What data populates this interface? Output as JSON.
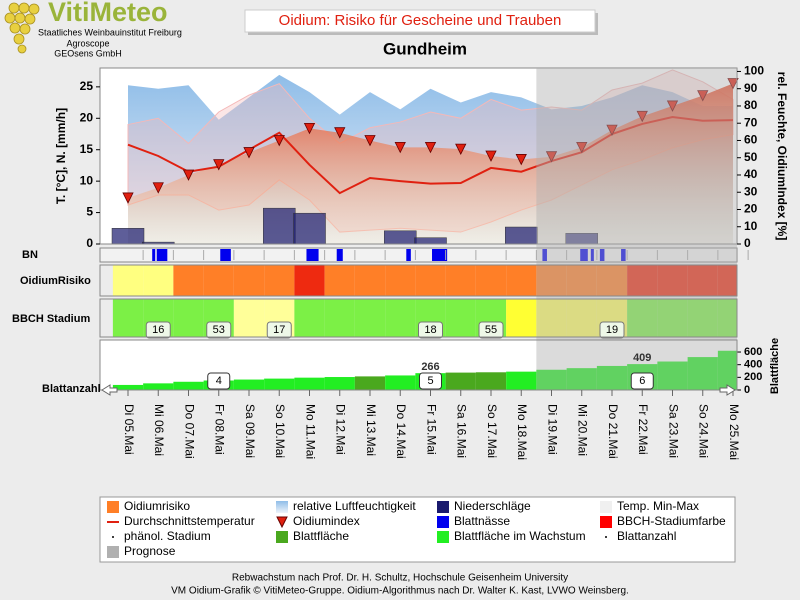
{
  "logo": {
    "name": "VitiMeteo",
    "lines": [
      "Staatliches Weinbauinstitut Freiburg",
      "Agroscope",
      "GEOsens GmbH"
    ]
  },
  "title": "Oidium: Risiko für Gescheine und Trauben",
  "chart_data": {
    "type": "line",
    "title": "Gundheim",
    "categories": [
      "Di 05.Mai",
      "Mi 06.Mai",
      "Do 07.Mai",
      "Fr 08.Mai",
      "Sa 09.Mai",
      "So 10.Mai",
      "Mo 11.Mai",
      "Di 12.Mai",
      "Mi 13.Mai",
      "Do 14.Mai",
      "Fr 15.Mai",
      "Sa 16.Mai",
      "So 17.Mai",
      "Mo 18.Mai",
      "Di 19.Mai",
      "Mi 20.Mai",
      "Do 21.Mai",
      "Fr 22.Mai",
      "Sa 23.Mai",
      "So 24.Mai",
      "Mo 25.Mai"
    ],
    "ylabel": "T. [°C], N. [mm/h]",
    "ylim": [
      0,
      28
    ],
    "yticks": [
      0,
      5,
      10,
      15,
      20,
      25
    ],
    "y2label": "rel. Feuchte, OidiumIndex [%]",
    "y2lim": [
      0,
      102
    ],
    "y2ticks": [
      0,
      10,
      20,
      30,
      40,
      50,
      60,
      70,
      80,
      90,
      100
    ],
    "series": [
      {
        "name": "relative Luftfeuchtigkeit",
        "kind": "area",
        "axis": "y2",
        "color": "#8fbde8",
        "values": [
          92,
          90,
          92,
          72,
          85,
          98,
          88,
          75,
          88,
          78,
          90,
          82,
          88,
          85,
          78,
          80,
          85,
          92,
          88,
          80,
          80
        ]
      },
      {
        "name": "Temp. Min-Max",
        "kind": "band",
        "color": "#f4b8b8",
        "legend_color": "#f0f0f0",
        "values": [
          19,
          20,
          16,
          21,
          23.7,
          25.5,
          20,
          16,
          18.5,
          19.4,
          21,
          20,
          23,
          21.3,
          21.8,
          21.3,
          24.5,
          25.6,
          27.7,
          25.8,
          23
        ],
        "min_values": [
          6.2,
          7.8,
          7.8,
          5.4,
          6.2,
          10.2,
          7,
          1.9,
          2.2,
          2.5,
          2.2,
          1.9,
          3.5,
          5.4,
          7,
          9.4,
          11.8,
          13.4,
          15.3,
          16.6,
          17.4
        ]
      },
      {
        "name": "Niederschläge",
        "kind": "bar",
        "color": "#1a1a6e",
        "values": [
          2.5,
          0.3,
          0,
          0,
          0,
          5.7,
          4.9,
          0,
          0,
          2.1,
          1,
          0,
          0,
          2.7,
          0,
          1.7,
          0,
          0,
          0,
          0,
          0
        ]
      },
      {
        "name": "Durchschnittstemperatur",
        "kind": "line",
        "color": "#e02010",
        "values": [
          15.8,
          14,
          11.5,
          12.3,
          15,
          17.7,
          12.6,
          8.1,
          10.5,
          10,
          9.6,
          9.7,
          12.1,
          11.5,
          13.2,
          14.6,
          17.5,
          19.1,
          20.2,
          19.6,
          19.7
        ]
      },
      {
        "name": "Oidiumindex",
        "kind": "triangles",
        "axis": "y2",
        "color": "#e02010",
        "values": [
          26.7,
          32.6,
          40,
          46,
          53,
          60,
          67,
          64.5,
          60,
          56,
          56,
          55,
          51,
          49,
          50.6,
          56,
          66,
          74,
          80,
          86,
          93
        ]
      }
    ],
    "prognose": {
      "name": "Prognose",
      "start_index": 14,
      "color": "#b0b0b0"
    }
  },
  "leaf_wetness": {
    "label": "BN",
    "name": "Blattnässe",
    "color": "#0000ee",
    "segments": [
      [
        0.8,
        0.9
      ],
      [
        0.95,
        1.3
      ],
      [
        3.05,
        3.4
      ],
      [
        5.9,
        6.3
      ],
      [
        6.9,
        7.1
      ],
      [
        9.2,
        9.35
      ],
      [
        10.05,
        10.55
      ],
      [
        13.7,
        13.85
      ],
      [
        14.95,
        15.2
      ],
      [
        15.3,
        15.4
      ],
      [
        15.6,
        15.75
      ],
      [
        16.3,
        16.45
      ]
    ]
  },
  "oidium_risk": {
    "label": "OidiumRisiko",
    "name": "Oidiumrisiko",
    "legend_color": "#ff7f27",
    "colors": [
      "#ffff80",
      "#ffff80",
      "#ff7f27",
      "#ff7f27",
      "#ff7f27",
      "#ff7f27",
      "#ee2a10",
      "#ff7f27",
      "#ff7f27",
      "#ff7f27",
      "#ff7f27",
      "#ff7f27",
      "#ff7f27",
      "#ff7f27",
      "#ff7f27",
      "#ff7f27",
      "#ff7f27",
      "#ee2a10",
      "#ee2a10",
      "#ee2a10",
      "#ee2a10"
    ]
  },
  "bbch": {
    "label": "BBCH Stadium",
    "name": "BBCH-Stadiumfarbe",
    "legend_color": "#ff0000",
    "colors": [
      "#7cf046",
      "#7cf046",
      "#7cf046",
      "#7cf046",
      "#ffff99",
      "#ffff99",
      "#7cf046",
      "#7cf046",
      "#7cf046",
      "#7cf046",
      "#7cf046",
      "#7cf046",
      "#7cf046",
      "#ffff33",
      "#ffff60",
      "#ffff60",
      "#ffff60",
      "#7cf046",
      "#7cf046",
      "#7cf046",
      "#7cf046"
    ],
    "stage_name": "phänol. Stadium",
    "stage_index": [
      1,
      3,
      5,
      10,
      12,
      16
    ],
    "stages": [
      16,
      53,
      17,
      18,
      55,
      19
    ]
  },
  "leaves": {
    "label": "Blattanzahl",
    "axis_label": "Blattfläche",
    "ylim": [
      0,
      790
    ],
    "yticks": [
      0,
      200,
      400,
      600
    ],
    "area_name": "Blattfläche",
    "area_color": "#4aa81e",
    "growing_name": "Blattfläche im Wachstum",
    "growing_color": "#22ee22",
    "area": [
      80,
      105,
      130,
      150,
      165,
      180,
      195,
      205,
      215,
      230,
      266,
      275,
      280,
      290,
      320,
      345,
      380,
      409,
      450,
      520,
      620
    ],
    "growing": [
      true,
      true,
      true,
      true,
      true,
      true,
      true,
      true,
      false,
      true,
      true,
      false,
      false,
      true,
      true,
      true,
      true,
      true,
      true,
      true,
      true
    ],
    "area_label_index": [
      10,
      17
    ],
    "count_index": [
      3,
      10,
      17
    ],
    "counts": [
      4,
      5,
      6
    ]
  },
  "footer": [
    "Rebwachstum nach Prof. Dr. H. Schultz, Hochschule Geisenheim University",
    "VM Oidium-Grafik © VitiMeteo-Gruppe. Oidium-Algorithmus nach Dr. Walter K. Kast, LVWO Weinsberg."
  ]
}
